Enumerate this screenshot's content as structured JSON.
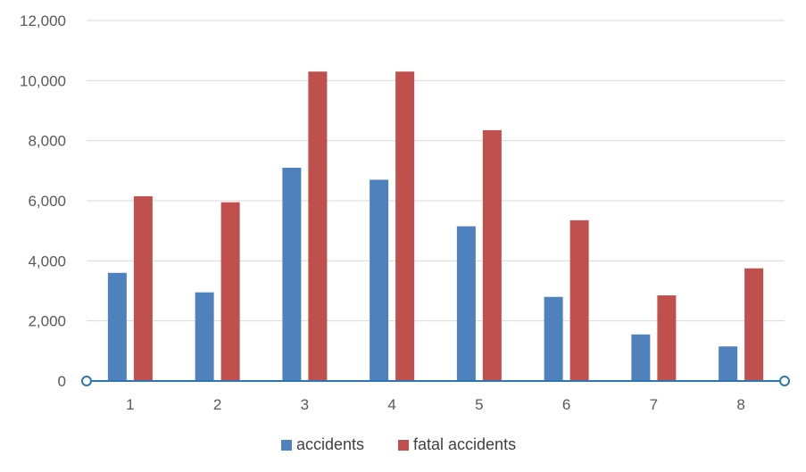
{
  "chart_data": {
    "type": "bar",
    "categories": [
      "1",
      "2",
      "3",
      "4",
      "5",
      "6",
      "7",
      "8"
    ],
    "series": [
      {
        "name": "accidents",
        "values": [
          3600,
          2950,
          7100,
          6700,
          5150,
          2800,
          1550,
          1150
        ],
        "color": "#4F81BD"
      },
      {
        "name": "fatal accidents",
        "values": [
          6150,
          5950,
          10300,
          10300,
          8350,
          5350,
          2850,
          3750
        ],
        "color": "#C0504D"
      }
    ],
    "ylim": [
      0,
      12000
    ],
    "yticks": [
      "0",
      "2,000",
      "4,000",
      "6,000",
      "8,000",
      "10,000",
      "12,000"
    ],
    "ytick_values": [
      0,
      2000,
      4000,
      6000,
      8000,
      10000,
      12000
    ],
    "grid": true,
    "legend_position": "bottom",
    "gridline_color": "#D9D9D9",
    "axis_color": "#2E75B6"
  }
}
